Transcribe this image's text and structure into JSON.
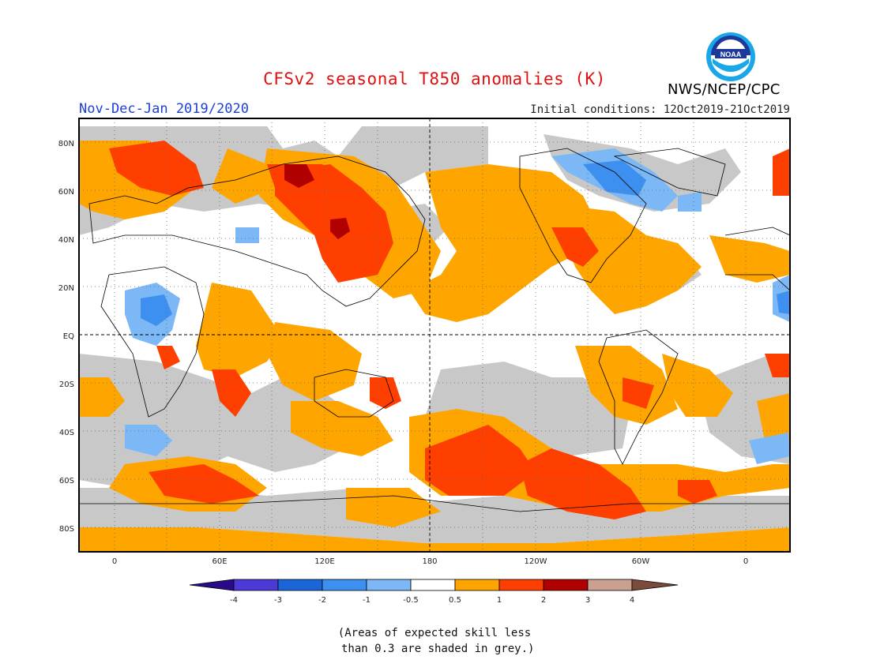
{
  "header": {
    "title": "CFSv2 seasonal T850 anomalies (K)",
    "season": "Nov-Dec-Jan 2019/2020",
    "initial_conditions": "Initial conditions: 12Oct2019-21Oct2019",
    "agency": "NWS/NCEP/CPC",
    "logo_text": "NOAA"
  },
  "map": {
    "lat_labels": [
      "80N",
      "60N",
      "40N",
      "20N",
      "EQ",
      "20S",
      "40S",
      "60S",
      "80S"
    ],
    "lon_labels": [
      "0",
      "60E",
      "120E",
      "180",
      "120W",
      "60W",
      "0"
    ],
    "projection": "cylindrical equidistant",
    "dateline_dashed": true,
    "equator_dashed": true
  },
  "legend": {
    "labels": [
      "-4",
      "-3",
      "-2",
      "-1",
      "-0.5",
      "0.5",
      "1",
      "2",
      "3",
      "4"
    ],
    "colors": [
      "#2a0a8a",
      "#4d3ad6",
      "#1a66d8",
      "#3d8ff0",
      "#7bb8f5",
      "#ffffff",
      "#ffa500",
      "#ff3f00",
      "#b00000",
      "#caa090",
      "#7a4a3a"
    ]
  },
  "note": "(Areas of expected skill less\n than 0.3 are shaded in grey.)",
  "colors": {
    "grey": "#c8c8c8",
    "orange": "#ffa500",
    "red": "#ff3f00",
    "darkred": "#b00000",
    "lightblue": "#7bb8f5",
    "blue": "#3d8ff0"
  }
}
